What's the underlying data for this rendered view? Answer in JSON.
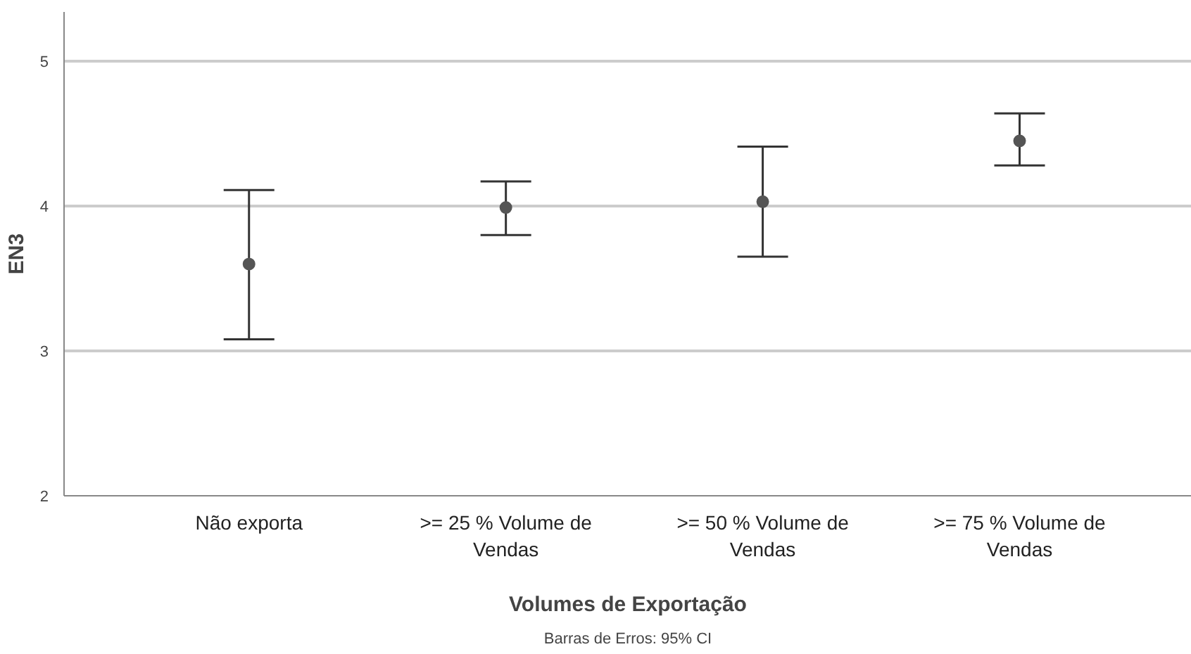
{
  "chart_data": {
    "type": "scatter",
    "categories": [
      "Não exporta",
      ">= 25 % Volume de Vendas",
      ">= 50 % Volume de Vendas",
      ">= 75 % Volume de Vendas"
    ],
    "values": [
      3.6,
      3.99,
      4.03,
      4.45
    ],
    "errors": [
      [
        3.08,
        4.11
      ],
      [
        3.8,
        4.17
      ],
      [
        3.65,
        4.41
      ],
      [
        4.28,
        4.64
      ]
    ],
    "color": "#555555",
    "marker": "circle",
    "xlabel": "Volumes de Exportação",
    "ylabel": "EN3",
    "ylim": [
      2,
      5.34
    ],
    "yticks": [
      2,
      3,
      4,
      5
    ],
    "grid": "y",
    "annotations": [
      "Barras de Erros: 95% CI"
    ]
  }
}
